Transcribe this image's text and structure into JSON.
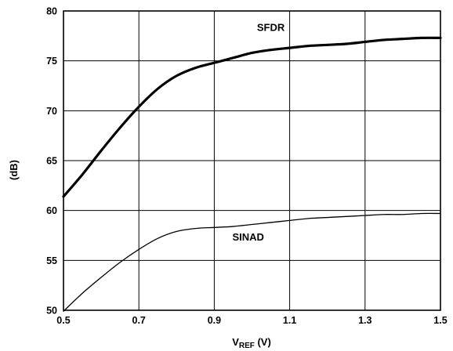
{
  "chart_data": {
    "type": "line",
    "title": "",
    "xlabel": {
      "main": "V",
      "sub": "REF",
      "rest": " (V)"
    },
    "ylabel": "(dB)",
    "xlim": [
      0.5,
      1.5
    ],
    "ylim": [
      50,
      80
    ],
    "x_ticks": [
      "0.5",
      "0.7",
      "0.9",
      "1.1",
      "1.3",
      "1.5"
    ],
    "y_ticks": [
      "50",
      "55",
      "60",
      "65",
      "70",
      "75",
      "80"
    ],
    "grid": true,
    "legend": "none",
    "series": [
      {
        "name": "SFDR",
        "line_weight": "bold",
        "x": [
          0.5,
          0.55,
          0.6,
          0.65,
          0.7,
          0.75,
          0.8,
          0.85,
          0.9,
          0.95,
          1.0,
          1.05,
          1.1,
          1.15,
          1.2,
          1.25,
          1.3,
          1.35,
          1.4,
          1.45,
          1.5
        ],
        "y": [
          61.4,
          63.6,
          66.0,
          68.3,
          70.4,
          72.2,
          73.5,
          74.3,
          74.8,
          75.3,
          75.8,
          76.1,
          76.3,
          76.5,
          76.6,
          76.7,
          76.9,
          77.1,
          77.2,
          77.3,
          77.3
        ]
      },
      {
        "name": "SINAD",
        "line_weight": "thin",
        "x": [
          0.5,
          0.55,
          0.6,
          0.65,
          0.7,
          0.75,
          0.8,
          0.85,
          0.9,
          0.95,
          1.0,
          1.05,
          1.1,
          1.15,
          1.2,
          1.25,
          1.3,
          1.35,
          1.4,
          1.45,
          1.5
        ],
        "y": [
          49.9,
          51.7,
          53.3,
          54.8,
          56.1,
          57.2,
          57.9,
          58.2,
          58.3,
          58.4,
          58.6,
          58.8,
          59.0,
          59.2,
          59.3,
          59.4,
          59.5,
          59.6,
          59.6,
          59.7,
          59.7
        ]
      }
    ],
    "annotations": [
      {
        "text": "SFDR",
        "x": 1.05,
        "y": 78.0
      },
      {
        "text": "SINAD",
        "x": 0.99,
        "y": 57.0
      }
    ]
  }
}
